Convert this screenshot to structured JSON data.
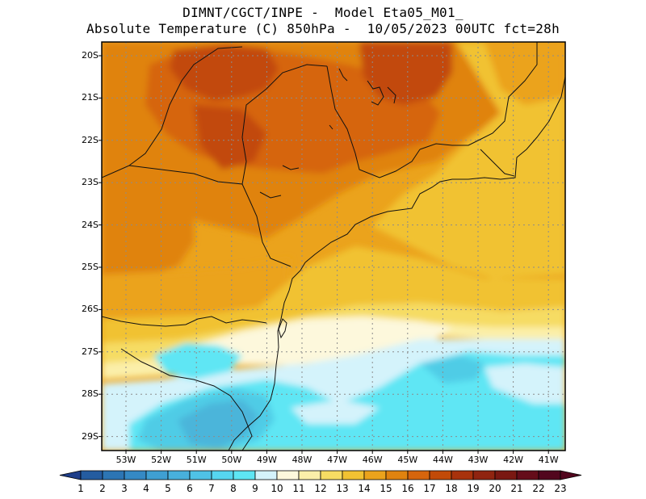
{
  "title": {
    "line1": "DIMNT/CGCT/INPE -  Model Eta05_M01_",
    "line2": "Absolute Temperature (C) 850hPa -  10/05/2023 00UTC fct=28h"
  },
  "map": {
    "lat_labels": [
      "20S",
      "21S",
      "22S",
      "23S",
      "24S",
      "25S",
      "26S",
      "27S",
      "28S",
      "29S"
    ],
    "lon_labels": [
      "53W",
      "52W",
      "51W",
      "50W",
      "49W",
      "48W",
      "47W",
      "46W",
      "45W",
      "44W",
      "43W",
      "42W",
      "41W"
    ],
    "colors": {
      "dark_red": "#c24a08",
      "red_orange": "#d6650d",
      "orange": "#e0830f",
      "light_orange": "#eba31c",
      "gold": "#f1c232",
      "yellow": "#f6dc63",
      "pale_yellow": "#fbefa9",
      "cream": "#fdf8dc",
      "pale_cyan": "#d4f3fb",
      "cyan": "#5ee6f4",
      "mid_cyan": "#50cce6",
      "blue": "#4bb5da"
    }
  },
  "colorbar": {
    "labels": [
      "1",
      "2",
      "3",
      "4",
      "5",
      "6",
      "7",
      "8",
      "9",
      "10",
      "11",
      "12",
      "13",
      "14",
      "15",
      "16",
      "17",
      "18",
      "19",
      "20",
      "21",
      "22",
      "23"
    ],
    "colors": [
      "#1e3e8a",
      "#245ca0",
      "#2c75b4",
      "#3589c4",
      "#3f9fd2",
      "#48b0dc",
      "#4fc2e6",
      "#56d6f0",
      "#5ee6f4",
      "#d4f3fb",
      "#fdf8dc",
      "#fbefa9",
      "#f6dc63",
      "#f1c232",
      "#eba31c",
      "#e0830f",
      "#d6650d",
      "#c24a08",
      "#a8320c",
      "#902410",
      "#7a1812",
      "#650d1a",
      "#52061e"
    ]
  }
}
